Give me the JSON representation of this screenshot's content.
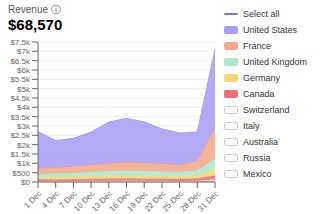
{
  "chart_data": {
    "type": "area",
    "title": "Revenue ⓘ",
    "subtitle": "$68,570",
    "stacked": true,
    "grid": true,
    "annotations": [
      "Select all"
    ],
    "categories": [
      "1 Dec",
      "4 Dec",
      "7 Dec",
      "10 Dec",
      "13 Dec",
      "16 Dec",
      "19 Dec",
      "22 Dec",
      "25 Dec",
      "28 Dec",
      "31 Dec"
    ],
    "series": [
      {
        "color": "#d8d8d8",
        "values": [
          50,
          55,
          60,
          65,
          70,
          75,
          70,
          65,
          60,
          70,
          130
        ]
      },
      {
        "name": "Canada",
        "color": "#f07070",
        "values": [
          80,
          85,
          90,
          100,
          110,
          115,
          110,
          105,
          100,
          115,
          220
        ]
      },
      {
        "name": "Germany",
        "color": "#f5d875",
        "values": [
          120,
          130,
          130,
          150,
          160,
          165,
          160,
          155,
          145,
          170,
          350
        ]
      },
      {
        "name": "United Kingdom",
        "color": "#abe8d0",
        "values": [
          180,
          200,
          220,
          230,
          250,
          260,
          255,
          250,
          240,
          280,
          550
        ]
      },
      {
        "name": "France",
        "color": "#f4a88a",
        "values": [
          320,
          300,
          340,
          380,
          420,
          450,
          430,
          420,
          380,
          500,
          1650
        ]
      },
      {
        "name": "United States",
        "color": "#a99ef5",
        "values": [
          1950,
          1450,
          1500,
          1750,
          2200,
          2350,
          2200,
          1850,
          1700,
          1550,
          4200
        ]
      },
      {
        "name": "Switzerland",
        "values": [
          null,
          null,
          null,
          null,
          null,
          null,
          null,
          null,
          null,
          null,
          null
        ]
      },
      {
        "name": "Italy",
        "values": [
          null,
          null,
          null,
          null,
          null,
          null,
          null,
          null,
          null,
          null,
          null
        ]
      },
      {
        "name": "Australia",
        "values": [
          null,
          null,
          null,
          null,
          null,
          null,
          null,
          null,
          null,
          null,
          null
        ]
      },
      {
        "name": "Russia",
        "values": [
          null,
          null,
          null,
          null,
          null,
          null,
          null,
          null,
          null,
          null,
          null
        ]
      },
      {
        "name": "Mexico",
        "values": [
          null,
          null,
          null,
          null,
          null,
          null,
          null,
          null,
          null,
          null,
          null
        ]
      }
    ],
    "ylim": [
      0,
      7500
    ],
    "yticks": [
      {
        "value": 0,
        "label": "$0"
      },
      {
        "value": 500,
        "label": "$500"
      },
      {
        "value": 1000,
        "label": "$1k"
      },
      {
        "value": 1500,
        "label": "$1.5k"
      },
      {
        "value": 2000,
        "label": "$2k"
      },
      {
        "value": 2500,
        "label": "$2.5k"
      },
      {
        "value": 3000,
        "label": "$3k"
      },
      {
        "value": 3500,
        "label": "$3.5k"
      },
      {
        "value": 4000,
        "label": "$4k"
      },
      {
        "value": 4500,
        "label": "$4.5k"
      },
      {
        "value": 5000,
        "label": "$5k"
      },
      {
        "value": 5500,
        "label": "$5.5k"
      },
      {
        "value": 6000,
        "label": "$6k"
      },
      {
        "value": 6500,
        "label": "$6.5k"
      },
      {
        "value": 7000,
        "label": "$7k"
      },
      {
        "value": 7500,
        "label": "$7.5k"
      }
    ]
  }
}
